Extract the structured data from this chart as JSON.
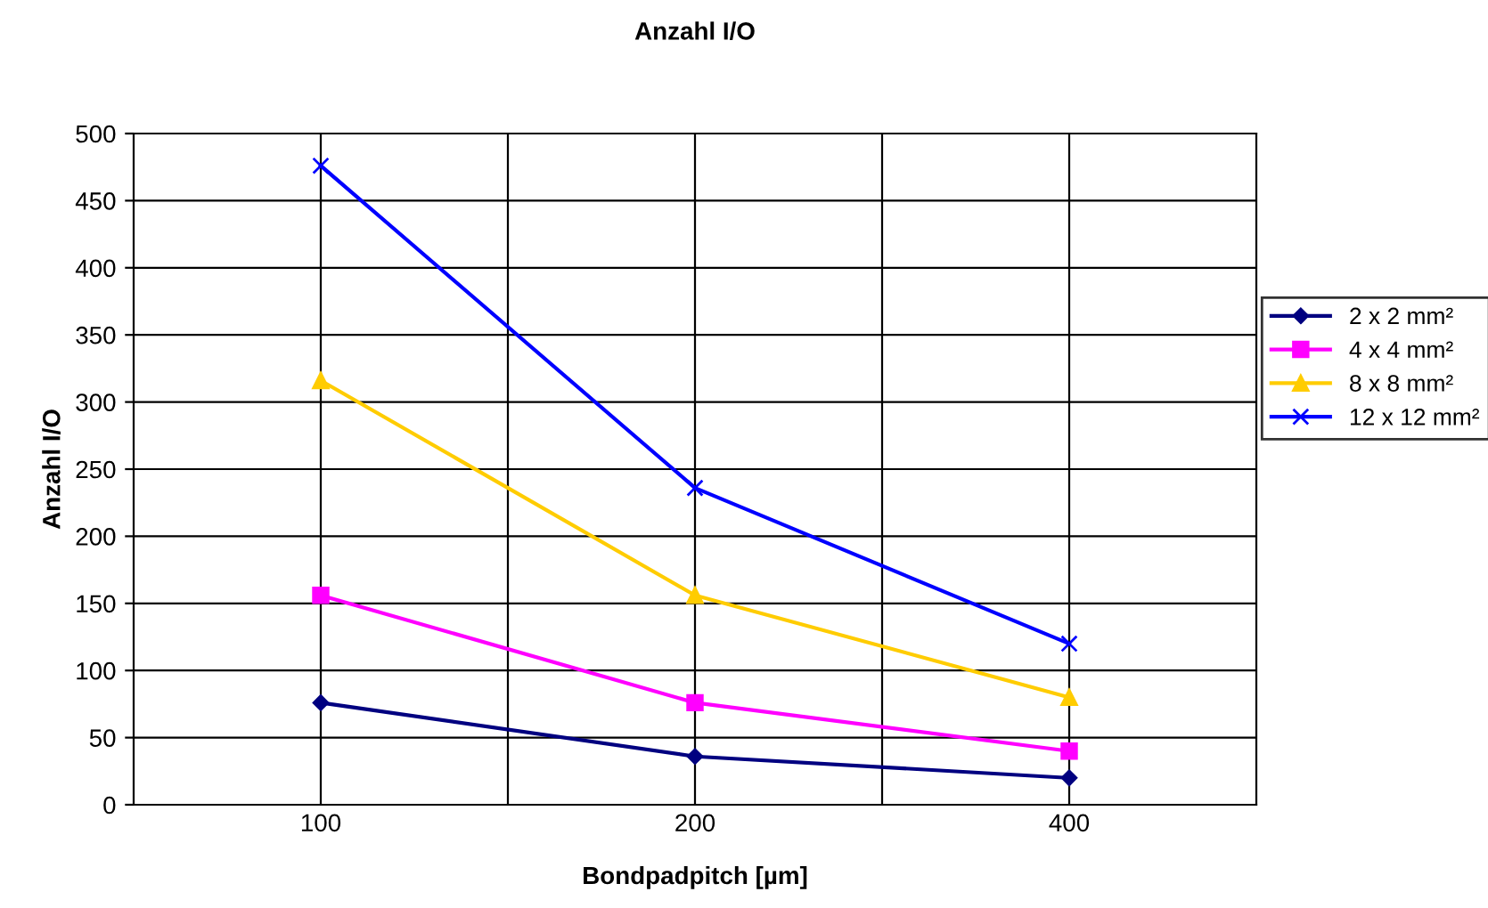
{
  "chart_data": {
    "type": "line",
    "title": "Anzahl I/O",
    "xlabel": "Bondpadpitch [µm]",
    "ylabel": "Anzahl I/O",
    "categories": [
      "100",
      "200",
      "400"
    ],
    "series": [
      {
        "name": "2 x 2 mm²",
        "color": "#000080",
        "marker": "diamond",
        "values": [
          76,
          36,
          20
        ]
      },
      {
        "name": "4 x 4 mm²",
        "color": "#ff00ff",
        "marker": "square",
        "values": [
          156,
          76,
          40
        ]
      },
      {
        "name": "8 x 8 mm²",
        "color": "#ffcc00",
        "marker": "triangle",
        "values": [
          316,
          156,
          80
        ]
      },
      {
        "name": "12 x 12 mm²",
        "color": "#0000ff",
        "marker": "cross",
        "values": [
          476,
          236,
          120
        ]
      }
    ],
    "ylim": [
      0,
      500
    ],
    "yticks": [
      0,
      50,
      100,
      150,
      200,
      250,
      300,
      350,
      400,
      450,
      500
    ],
    "grid": true,
    "legend": "right",
    "line_style": "solid"
  }
}
